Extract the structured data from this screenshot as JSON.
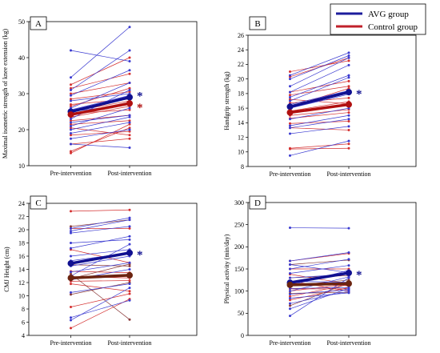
{
  "legend": [
    {
      "label": "AVG group",
      "color": "#1c1c9c"
    },
    {
      "label": "Control group",
      "color": "#c0202a"
    }
  ],
  "colors": {
    "avg_individual": "#3a3ad0",
    "control_individual": "#d43030",
    "control_individual_alt": "#8a3a3a",
    "avg_mean": "#101090",
    "control_mean_red": "#b01010",
    "control_mean_brown": "#6b2410"
  },
  "chart_data": [
    {
      "type": "line",
      "panel": "A",
      "x": [
        "Pre-intervention",
        "Post-intervention"
      ],
      "ylabel": "Maximal isometric strength of knee extension (kg)",
      "ylim": [
        10,
        50
      ],
      "yticks": [
        10,
        20,
        30,
        40,
        50
      ],
      "grid": false,
      "significance": [
        {
          "series": "AVG group",
          "mark": "*"
        },
        {
          "series": "Control group",
          "mark": "*"
        }
      ],
      "mean_series": [
        {
          "name": "AVG group",
          "values": [
            25.0,
            29.0
          ]
        },
        {
          "name": "Control group",
          "values": [
            24.2,
            27.3
          ]
        }
      ],
      "individual": {
        "avg": [
          [
            42,
            39
          ],
          [
            34.5,
            48.5
          ],
          [
            31,
            42
          ],
          [
            29.5,
            36.5
          ],
          [
            28,
            30
          ],
          [
            26,
            33
          ],
          [
            25,
            27
          ],
          [
            23,
            31
          ],
          [
            22,
            24
          ],
          [
            20,
            23.5
          ],
          [
            19,
            22
          ],
          [
            17.5,
            20
          ],
          [
            16,
            15
          ],
          [
            25.5,
            29.5
          ],
          [
            21,
            26
          ]
        ],
        "control": [
          [
            32.5,
            40
          ],
          [
            31.5,
            35.5
          ],
          [
            30,
            33
          ],
          [
            28.5,
            30.5
          ],
          [
            27,
            28.5
          ],
          [
            26.5,
            31.5
          ],
          [
            25,
            28
          ],
          [
            24.5,
            25.5
          ],
          [
            23.5,
            26.5
          ],
          [
            22.5,
            24
          ],
          [
            21.5,
            22.5
          ],
          [
            20.5,
            18.5
          ],
          [
            18.5,
            19.5
          ],
          [
            16,
            17.5
          ],
          [
            14,
            20.5
          ],
          [
            13.5,
            21.5
          ],
          [
            24,
            27.5
          ]
        ]
      }
    },
    {
      "type": "line",
      "panel": "B",
      "x": [
        "Pre-intervention",
        "Post-intervention"
      ],
      "ylabel": "Handgrip strength (kg)",
      "ylim": [
        8,
        26
      ],
      "yticks": [
        8,
        10,
        12,
        14,
        16,
        18,
        20,
        22,
        24,
        26
      ],
      "grid": false,
      "significance": [
        {
          "series": "AVG group",
          "mark": "*"
        }
      ],
      "mean_series": [
        {
          "name": "AVG group",
          "values": [
            16.2,
            18.2
          ]
        },
        {
          "name": "Control group",
          "values": [
            15.4,
            16.5
          ]
        }
      ],
      "individual": {
        "avg": [
          [
            20.5,
            23.6
          ],
          [
            20,
            23.2
          ],
          [
            19,
            22.9
          ],
          [
            18.2,
            21.9
          ],
          [
            17.5,
            20.5
          ],
          [
            17,
            20.2
          ],
          [
            16.5,
            18.4
          ],
          [
            16,
            17.9
          ],
          [
            15.5,
            16.5
          ],
          [
            14.5,
            16
          ],
          [
            13.6,
            15
          ],
          [
            13.3,
            14.5
          ],
          [
            12.5,
            13.5
          ],
          [
            9.5,
            11.5
          ]
        ],
        "control": [
          [
            21,
            22.5
          ],
          [
            20.3,
            22.9
          ],
          [
            18.2,
            19.7
          ],
          [
            17.8,
            19
          ],
          [
            17.2,
            16.6
          ],
          [
            16.7,
            17.4
          ],
          [
            16.2,
            18.7
          ],
          [
            15.6,
            16.9
          ],
          [
            15,
            15.8
          ],
          [
            14.6,
            15.4
          ],
          [
            13.9,
            14.2
          ],
          [
            13.3,
            13
          ],
          [
            10.5,
            11.1
          ],
          [
            10.4,
            10.5
          ]
        ]
      }
    },
    {
      "type": "line",
      "panel": "C",
      "x": [
        "Pre-intervention",
        "Post-intervention"
      ],
      "ylabel": "CMJ Height (cm)",
      "ylim": [
        4,
        24
      ],
      "yticks": [
        4,
        6,
        8,
        10,
        12,
        14,
        16,
        18,
        20,
        22,
        24
      ],
      "grid": false,
      "significance": [
        {
          "series": "AVG group",
          "mark": "*"
        }
      ],
      "mean_series": [
        {
          "name": "AVG group",
          "values": [
            14.9,
            16.5
          ]
        },
        {
          "name": "Control group",
          "values": [
            12.7,
            13.1
          ]
        }
      ],
      "individual": {
        "avg": [
          [
            20.2,
            21.8
          ],
          [
            19.8,
            21.5
          ],
          [
            19.5,
            20.5
          ],
          [
            18,
            18.5
          ],
          [
            17.2,
            19
          ],
          [
            16,
            17
          ],
          [
            15.3,
            16.5
          ],
          [
            14.5,
            16
          ],
          [
            13.6,
            15
          ],
          [
            13,
            17.8
          ],
          [
            12.4,
            14
          ],
          [
            10.5,
            11.8
          ],
          [
            6.7,
            9.3
          ],
          [
            6.3,
            11.2
          ]
        ],
        "control": [
          [
            22.8,
            23
          ],
          [
            20.5,
            21.5
          ],
          [
            20.2,
            20.2
          ],
          [
            17,
            15
          ],
          [
            14.7,
            14.5
          ],
          [
            13.7,
            13.5
          ],
          [
            12.9,
            12.7
          ],
          [
            12.6,
            14.8
          ],
          [
            12.2,
            12.3
          ],
          [
            11.8,
            10.7
          ],
          [
            10.2,
            12
          ],
          [
            8.3,
            10.3
          ],
          [
            5.1,
            9.5
          ],
          [
            13.3,
            6.4
          ]
        ]
      }
    },
    {
      "type": "line",
      "panel": "D",
      "x": [
        "Pre-intervention",
        "Post-intervention"
      ],
      "ylabel": "Physical activity (min/day)",
      "ylim": [
        0,
        300
      ],
      "yticks": [
        0,
        50,
        100,
        150,
        200,
        250,
        300
      ],
      "grid": false,
      "significance": [
        {
          "series": "AVG group",
          "mark": "*"
        }
      ],
      "mean_series": [
        {
          "name": "AVG group",
          "values": [
            119,
            141
          ]
        },
        {
          "name": "Control group",
          "values": [
            114,
            117
          ]
        }
      ],
      "individual": {
        "avg": [
          [
            243,
            242
          ],
          [
            168,
            187
          ],
          [
            160,
            142
          ],
          [
            150,
            172
          ],
          [
            140,
            158
          ],
          [
            130,
            138
          ],
          [
            122,
            120
          ],
          [
            113,
            147
          ],
          [
            106,
            108
          ],
          [
            100,
            132
          ],
          [
            93,
            103
          ],
          [
            84,
            96
          ],
          [
            72,
            100
          ],
          [
            60,
            106
          ],
          [
            44,
            130
          ]
        ],
        "control": [
          [
            168,
            185
          ],
          [
            160,
            170
          ],
          [
            150,
            150
          ],
          [
            138,
            116
          ],
          [
            130,
            135
          ],
          [
            123,
            100
          ],
          [
            118,
            112
          ],
          [
            112,
            125
          ],
          [
            105,
            105
          ],
          [
            100,
            116
          ],
          [
            95,
            97
          ],
          [
            88,
            115
          ],
          [
            80,
            108
          ],
          [
            67,
            118
          ]
        ]
      }
    }
  ]
}
